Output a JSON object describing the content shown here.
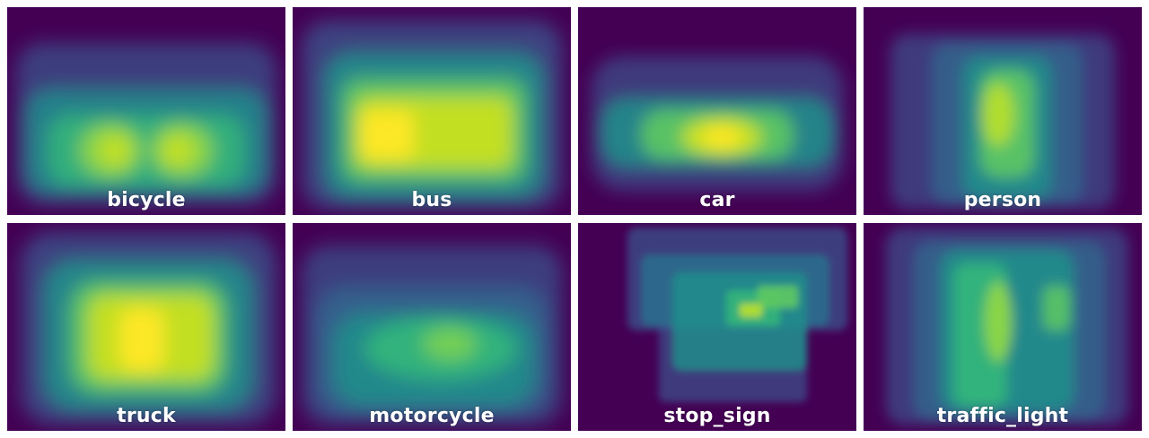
{
  "tiles": [
    {
      "label": "bicycle"
    },
    {
      "label": "bus"
    },
    {
      "label": "car"
    },
    {
      "label": "person"
    },
    {
      "label": "truck"
    },
    {
      "label": "motorcycle"
    },
    {
      "label": "stop_sign"
    },
    {
      "label": "traffic_light"
    }
  ],
  "colors": {
    "background": "#440154",
    "low": "#3b528b",
    "mid": "#21918c",
    "high": "#5ec962",
    "peak": "#fde725"
  }
}
